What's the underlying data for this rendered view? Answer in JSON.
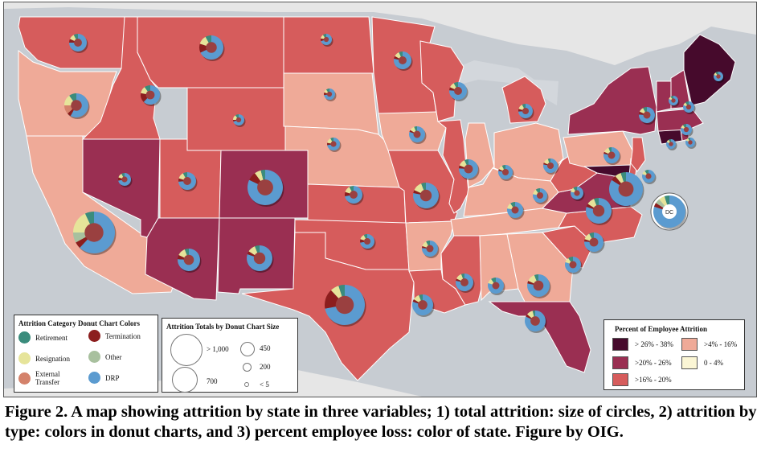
{
  "colors": {
    "ocean": "#c7ccd2",
    "land": "#e6e6e6",
    "water": "#d3d7dc",
    "border": "#ffffff",
    "donut": {
      "retirement": "#3a8c7c",
      "termination": "#8c1e1e",
      "resignation": "#e6e49a",
      "other": "#a8c09e",
      "external_transfer": "#d4826b",
      "drp": "#5b9bd0"
    },
    "bins": {
      "b5": "#460a2c",
      "b4": "#9a2f52",
      "b3": "#d65c5c",
      "b2": "#efaa98",
      "b1": "#fbf6d5"
    }
  },
  "donut_legend": {
    "title": "Attrition Category Donut Chart Colors",
    "items": [
      {
        "key": "retirement",
        "label": "Retirement",
        "color": "#3a8c7c"
      },
      {
        "key": "termination",
        "label": "Termination",
        "color": "#8c1e1e"
      },
      {
        "key": "resignation",
        "label": "Resignation",
        "color": "#e6e49a"
      },
      {
        "key": "other",
        "label": "Other",
        "color": "#a8c09e"
      },
      {
        "key": "external_transfer",
        "label": "External Transfer",
        "color": "#d4826b"
      },
      {
        "key": "drp",
        "label": "DRP",
        "color": "#5b9bd0"
      }
    ]
  },
  "size_legend": {
    "title": "Attrition Totals by Donut Chart Size",
    "labels": [
      "> 1,000",
      "700",
      "450",
      "200",
      "< 5"
    ]
  },
  "percent_legend": {
    "title": "Percent of Employee Attrition",
    "items": [
      {
        "label": "> 26% - 38%",
        "color": "#460a2c"
      },
      {
        "label": ">4% - 16%",
        "color": "#efaa98"
      },
      {
        "label": ">20% - 26%",
        "color": "#9a2f52"
      },
      {
        "label": "0 - 4%",
        "color": "#fbf6d5"
      },
      {
        "label": ">16% - 20%",
        "color": "#d65c5c"
      }
    ]
  },
  "dc_label": "DC",
  "caption": "Figure 2. A map showing attrition by state in three variables; 1) total attrition: size of circles, 2) attrition by type: colors in donut charts, and 3) percent employee loss: color of state. Figure by OIG.",
  "states": [
    {
      "name": "WA",
      "bin": "b3"
    },
    {
      "name": "OR",
      "bin": "b2"
    },
    {
      "name": "CA",
      "bin": "b2"
    },
    {
      "name": "ID",
      "bin": "b3"
    },
    {
      "name": "NV",
      "bin": "b4"
    },
    {
      "name": "MT",
      "bin": "b3"
    },
    {
      "name": "WY",
      "bin": "b3"
    },
    {
      "name": "UT",
      "bin": "b3"
    },
    {
      "name": "AZ",
      "bin": "b4"
    },
    {
      "name": "CO",
      "bin": "b4"
    },
    {
      "name": "NM",
      "bin": "b4"
    },
    {
      "name": "ND",
      "bin": "b3"
    },
    {
      "name": "SD",
      "bin": "b2"
    },
    {
      "name": "NE",
      "bin": "b2"
    },
    {
      "name": "KS",
      "bin": "b3"
    },
    {
      "name": "OK",
      "bin": "b3"
    },
    {
      "name": "TX",
      "bin": "b3"
    },
    {
      "name": "MN",
      "bin": "b3"
    },
    {
      "name": "IA",
      "bin": "b2"
    },
    {
      "name": "MO",
      "bin": "b3"
    },
    {
      "name": "AR",
      "bin": "b2"
    },
    {
      "name": "LA",
      "bin": "b3"
    },
    {
      "name": "WI",
      "bin": "b3"
    },
    {
      "name": "IL",
      "bin": "b3"
    },
    {
      "name": "MI",
      "bin": "b3"
    },
    {
      "name": "IN",
      "bin": "b2"
    },
    {
      "name": "OH",
      "bin": "b2"
    },
    {
      "name": "KY",
      "bin": "b2"
    },
    {
      "name": "TN",
      "bin": "b2"
    },
    {
      "name": "MS",
      "bin": "b3"
    },
    {
      "name": "AL",
      "bin": "b2"
    },
    {
      "name": "GA",
      "bin": "b2"
    },
    {
      "name": "FL",
      "bin": "b4"
    },
    {
      "name": "SC",
      "bin": "b3"
    },
    {
      "name": "NC",
      "bin": "b3"
    },
    {
      "name": "VA",
      "bin": "b4"
    },
    {
      "name": "WV",
      "bin": "b3"
    },
    {
      "name": "PA",
      "bin": "b2"
    },
    {
      "name": "NY",
      "bin": "b4"
    },
    {
      "name": "MD",
      "bin": "b5"
    },
    {
      "name": "DE",
      "bin": "b3"
    },
    {
      "name": "NJ",
      "bin": "b3"
    },
    {
      "name": "CT",
      "bin": "b5"
    },
    {
      "name": "RI",
      "bin": "b4"
    },
    {
      "name": "MA",
      "bin": "b4"
    },
    {
      "name": "VT",
      "bin": "b4"
    },
    {
      "name": "NH",
      "bin": "b4"
    },
    {
      "name": "ME",
      "bin": "b5"
    }
  ]
}
